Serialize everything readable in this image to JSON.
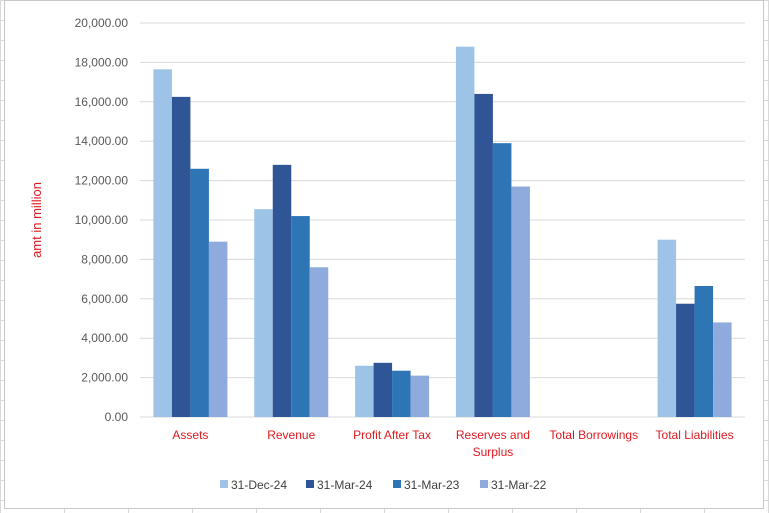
{
  "chart_data": {
    "type": "bar",
    "title": "",
    "xlabel": "",
    "ylabel": "amt in million",
    "ylim": [
      0,
      20000
    ],
    "yticks": [
      "0.00",
      "2,000.00",
      "4,000.00",
      "6,000.00",
      "8,000.00",
      "10,000.00",
      "12,000.00",
      "14,000.00",
      "16,000.00",
      "18,000.00",
      "20,000.00"
    ],
    "categories": [
      [
        "Assets"
      ],
      [
        "Revenue"
      ],
      [
        "Profit After Tax"
      ],
      [
        "Reserves and",
        "Surplus"
      ],
      [
        "Total Borrowings"
      ],
      [
        "Total Liabilities"
      ]
    ],
    "series": [
      {
        "name": "31-Dec-24",
        "color": "#9dc3e6",
        "values": [
          17650,
          10550,
          2600,
          18800,
          0,
          9000
        ]
      },
      {
        "name": "31-Mar-24",
        "color": "#2f5597",
        "values": [
          16250,
          12800,
          2750,
          16400,
          0,
          5750
        ]
      },
      {
        "name": "31-Mar-23",
        "color": "#2e75b6",
        "values": [
          12600,
          10200,
          2350,
          13900,
          0,
          6650
        ]
      },
      {
        "name": "31-Mar-22",
        "color": "#8faadc",
        "values": [
          8900,
          7600,
          2100,
          11700,
          0,
          4800
        ]
      }
    ],
    "grid": true,
    "legend_position": "bottom"
  }
}
